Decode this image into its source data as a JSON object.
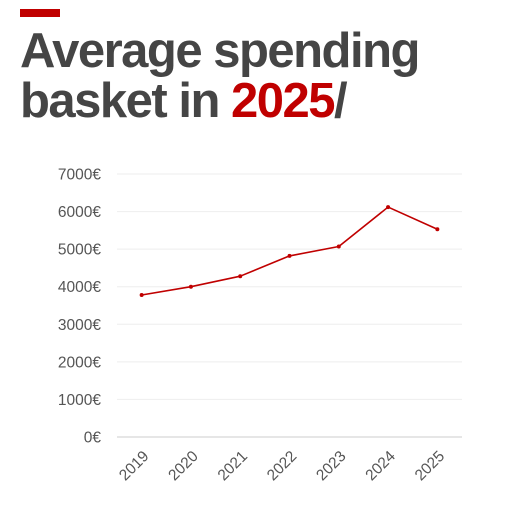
{
  "theme": {
    "accent": "#c00000",
    "title_color": "#454545",
    "grid_color": "#eeeeee",
    "axis_color": "#cccccc"
  },
  "header": {
    "title_line1": "Average spending",
    "title_line2_prefix": "basket in ",
    "title_highlight": "2025",
    "title_suffix": "/"
  },
  "chart_data": {
    "type": "line",
    "title": "",
    "xlabel": "",
    "ylabel": "",
    "categories": [
      "2019",
      "2020",
      "2021",
      "2022",
      "2023",
      "2024",
      "2025"
    ],
    "series": [
      {
        "values": [
          3780,
          4000,
          4280,
          4820,
          5070,
          6120,
          5530
        ],
        "color": "#c00000"
      }
    ],
    "y_ticks": [
      0,
      1000,
      2000,
      3000,
      4000,
      5000,
      6000,
      7000
    ],
    "y_tick_labels": [
      "0€",
      "1000€",
      "2000€",
      "3000€",
      "4000€",
      "5000€",
      "6000€",
      "7000€"
    ],
    "ylim": [
      0,
      7000
    ],
    "grid": true,
    "legend": "none",
    "x_tick_rotation": -45
  }
}
